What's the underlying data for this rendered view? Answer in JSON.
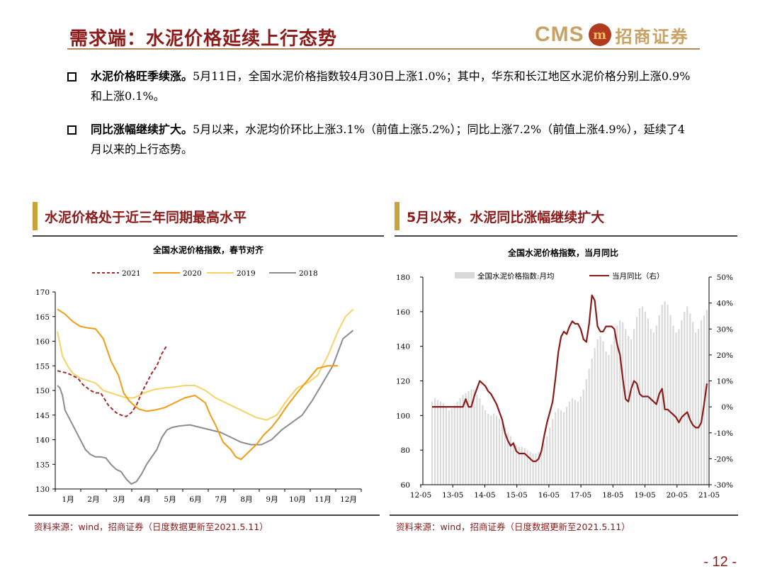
{
  "header": {
    "title": "需求端：水泥价格延续上行态势",
    "logo_cms": "CMS",
    "logo_name": "招商证券"
  },
  "bullets": [
    {
      "lead": "水泥价格旺季续涨。",
      "text": "5月11日，全国水泥价格指数较4月30日上涨1.0%；其中，华东和长江地区水泥价格分别上涨0.9%和上涨0.1%。"
    },
    {
      "lead": "同比涨幅继续扩大。",
      "text": "5月以来，水泥均价环比上涨3.1%（前值上涨5.2%）；同比上涨7.2%（前值上涨4.9%），延续了4月以来的上行态势。"
    }
  ],
  "left_panel": {
    "heading": "水泥价格处于近三年同期最高水平",
    "source": "资料来源：wind，招商证券（日度数据更新至2021.5.11）"
  },
  "right_panel": {
    "heading": "5月以来，水泥同比涨幅继续扩大",
    "source": "资料来源：wind，招商证券（日度数据更新至2021.5.11）"
  },
  "page_number": "- 12 -",
  "colors": {
    "accent": "#8b1a1a",
    "s2021": "#a52a2a",
    "s2020": "#f39c12",
    "s2019": "#f7d264",
    "s2018": "#8c8c8c",
    "bars": "#d9d9d9",
    "yoy": "#8b1a1a"
  },
  "chart_data": [
    {
      "type": "line",
      "title": "全国水泥价格指数，春节对齐",
      "categories": [
        "1月",
        "2月",
        "3月",
        "4月",
        "5月",
        "6月",
        "7月",
        "8月",
        "9月",
        "10月",
        "11月",
        "12月"
      ],
      "ylim": [
        130,
        170
      ],
      "yticks": [
        130,
        135,
        140,
        145,
        150,
        155,
        160,
        165,
        170
      ],
      "legend": "top",
      "series": [
        {
          "name": "2021",
          "style": "dashed",
          "x": [
            0,
            0.4,
            0.8,
            1.0,
            1.3,
            1.5,
            1.7,
            2.0,
            2.3,
            2.5,
            2.7,
            2.9,
            3.1,
            3.3,
            3.5,
            3.7,
            3.9,
            4.1,
            4.3
          ],
          "y": [
            154,
            153.5,
            152.5,
            151.2,
            150,
            149.5,
            149.5,
            147,
            145.5,
            145,
            144.7,
            145.5,
            147,
            149.5,
            151.5,
            153.5,
            155,
            157.5,
            159.2
          ]
        },
        {
          "name": "2020",
          "x": [
            0,
            0.3,
            0.6,
            0.9,
            1.2,
            1.5,
            1.8,
            2.1,
            2.4,
            2.6,
            2.8,
            3.0,
            3.2,
            3.5,
            3.8,
            4.2,
            4.6,
            5.0,
            5.4,
            5.8,
            6.0,
            6.2,
            6.5,
            6.8,
            7.0,
            7.2,
            7.5,
            7.8,
            8.1,
            8.4,
            8.7,
            9.0,
            9.4,
            9.8,
            10.2,
            10.6,
            11.0
          ],
          "y": [
            166.5,
            165.5,
            164,
            163,
            162.7,
            162.5,
            160.5,
            156,
            153,
            149.5,
            148,
            147,
            146.2,
            145.8,
            146,
            146.5,
            147.5,
            148.5,
            149,
            147.5,
            145,
            143,
            139.5,
            138,
            136.5,
            136,
            137.5,
            139,
            141,
            142.5,
            144.5,
            146.8,
            149.5,
            152,
            154.5,
            155,
            155
          ]
        },
        {
          "name": "2019",
          "x": [
            0,
            0.2,
            0.4,
            0.6,
            0.9,
            1.2,
            1.5,
            1.8,
            2.1,
            2.4,
            2.7,
            3.0,
            3.4,
            3.8,
            4.2,
            4.6,
            5.0,
            5.4,
            5.8,
            6.2,
            6.6,
            7.0,
            7.4,
            7.8,
            8.2,
            8.6,
            9.0,
            9.4,
            9.8,
            10.2,
            10.6,
            11.0,
            11.3,
            11.6
          ],
          "y": [
            162,
            157,
            155,
            153.5,
            152.5,
            152,
            151.5,
            150,
            149.5,
            149,
            148.5,
            148.5,
            149.5,
            150.2,
            150.5,
            150.7,
            151,
            151,
            150,
            148.5,
            147.5,
            146.5,
            145.5,
            144.5,
            144,
            145,
            148,
            150.5,
            151.5,
            153,
            157,
            162,
            165,
            166.5
          ]
        },
        {
          "name": "2018",
          "x": [
            0,
            0.1,
            0.2,
            0.3,
            0.5,
            0.7,
            0.9,
            1.1,
            1.3,
            1.5,
            1.7,
            1.9,
            2.1,
            2.3,
            2.5,
            2.7,
            2.9,
            3.1,
            3.3,
            3.5,
            3.7,
            3.9,
            4.1,
            4.3,
            4.5,
            4.8,
            5.2,
            5.6,
            6.0,
            6.4,
            6.8,
            7.2,
            7.6,
            8.0,
            8.4,
            8.8,
            9.2,
            9.6,
            10.0,
            10.4,
            10.8,
            11.2,
            11.6
          ],
          "y": [
            151,
            150.5,
            149,
            146,
            144,
            142,
            140,
            138,
            137,
            136.5,
            136.5,
            136.3,
            135,
            134,
            133.5,
            132,
            131,
            131.5,
            133,
            135,
            136.5,
            138,
            140.5,
            142,
            142.5,
            142.8,
            143,
            142.5,
            142,
            141.5,
            140.5,
            139.5,
            139,
            139,
            140,
            142,
            143.5,
            145,
            148,
            151.5,
            155,
            160.5,
            162.2
          ]
        }
      ]
    },
    {
      "type": "bar+line",
      "title": "全国水泥价格指数，当月同比",
      "x_ticks": [
        "12-05",
        "13-05",
        "14-05",
        "15-05",
        "16-05",
        "17-05",
        "18-05",
        "19-05",
        "20-05",
        "21-05"
      ],
      "ylim_left": [
        60,
        180
      ],
      "yticks_left": [
        60,
        80,
        100,
        120,
        140,
        160,
        180
      ],
      "ylim_right": [
        -30,
        50
      ],
      "yticks_right": [
        "-30%",
        "-20%",
        "-10%",
        "0%",
        "10%",
        "20%",
        "30%",
        "40%",
        "50%"
      ],
      "legend": "top",
      "series": [
        {
          "name": "全国水泥价格指数:月均",
          "axis": "left",
          "kind": "bar",
          "values": [
            108,
            110,
            109,
            108,
            107,
            105,
            103,
            104,
            106,
            108,
            110,
            112,
            113,
            114,
            115,
            115,
            112,
            110,
            106,
            103,
            101,
            100,
            101,
            100,
            98,
            96,
            93,
            90,
            88,
            85,
            83,
            82,
            82,
            81,
            80,
            79,
            78,
            78,
            79,
            81,
            84,
            88,
            93,
            98,
            102,
            104,
            103,
            102,
            105,
            108,
            110,
            109,
            108,
            111,
            115,
            121,
            127,
            133,
            139,
            144,
            146,
            143,
            137,
            135,
            141,
            147,
            152,
            155,
            154,
            150,
            146,
            144,
            150,
            157,
            162,
            163,
            160,
            156,
            150,
            148,
            152,
            158,
            164,
            166,
            164,
            158,
            152,
            148,
            150,
            155,
            160,
            163,
            159,
            154,
            148,
            150,
            155,
            158,
            161
          ]
        },
        {
          "name": "当月同比（右）",
          "axis": "right",
          "kind": "line",
          "values": [
            0,
            0,
            0,
            0,
            0,
            0,
            0,
            0,
            0,
            0,
            0,
            0,
            3,
            0,
            0,
            4,
            7,
            10,
            9,
            8,
            6,
            5,
            3,
            1,
            -2,
            -5,
            -10,
            -13,
            -15,
            -14,
            -17,
            -18,
            -18,
            -18,
            -19,
            -20,
            -21,
            -21,
            -20,
            -17,
            -11,
            -6,
            -2,
            2,
            11,
            21,
            27,
            29,
            28,
            31,
            33,
            32,
            32,
            30,
            26,
            25,
            32,
            43,
            41,
            31,
            29,
            29,
            31,
            31,
            31,
            30,
            24,
            20,
            11,
            3,
            2,
            7,
            10,
            9,
            5,
            4,
            4,
            4,
            3,
            2,
            1,
            5,
            7,
            -1,
            -1,
            -2,
            -3,
            -4,
            -6,
            -4,
            -3,
            -2,
            -5,
            -7,
            -8,
            -8,
            -6,
            1,
            9
          ]
        }
      ]
    }
  ]
}
